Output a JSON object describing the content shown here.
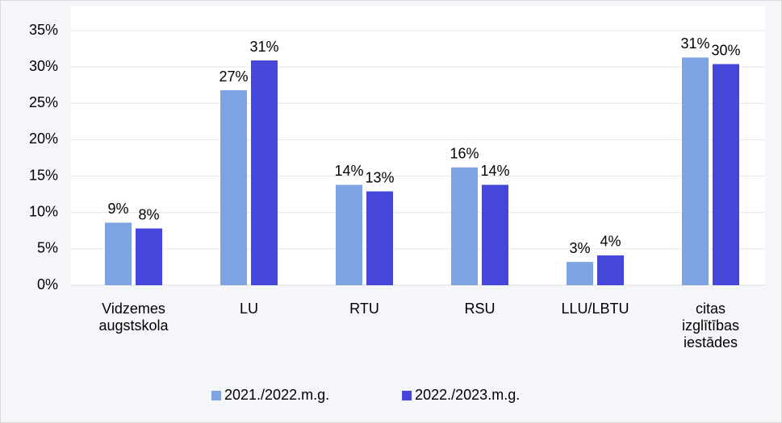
{
  "chart_data": {
    "type": "bar",
    "categories": [
      "Vidzemes augstskola",
      "LU",
      "RTU",
      "RSU",
      "LLU/LBTU",
      "citas izglītības iestādes"
    ],
    "series": [
      {
        "name": "2021./2022.m.g.",
        "color": "#7ea3e1",
        "values": [
          8.6,
          26.8,
          13.8,
          16.2,
          3.2,
          31.3
        ],
        "value_labels": [
          "9%",
          "27%",
          "14%",
          "16%",
          "3%",
          "31%"
        ]
      },
      {
        "name": "2022./2023.m.g.",
        "color": "#4646da",
        "values": [
          7.8,
          30.9,
          12.9,
          13.8,
          4.1,
          30.4
        ],
        "value_labels": [
          "8%",
          "31%",
          "13%",
          "14%",
          "4%",
          "30%"
        ]
      }
    ],
    "ylim": [
      0,
      35
    ],
    "yticks": [
      {
        "value": 0,
        "label": "0%"
      },
      {
        "value": 5,
        "label": "5%"
      },
      {
        "value": 10,
        "label": "10%"
      },
      {
        "value": 15,
        "label": "15%"
      },
      {
        "value": 20,
        "label": "20%"
      },
      {
        "value": 25,
        "label": "25%"
      },
      {
        "value": 30,
        "label": "30%"
      },
      {
        "value": 35,
        "label": "35%"
      }
    ],
    "grid": true,
    "legend": "bottom"
  }
}
